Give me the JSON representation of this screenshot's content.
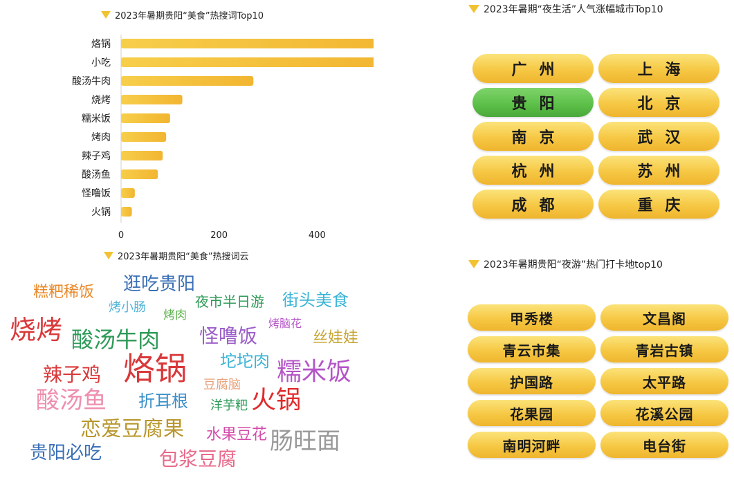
{
  "bar_title": "2023年暑期贵阳“美食”热搜词Top10",
  "cloud_title": "2023年暑期贵阳“美食”热搜词云",
  "cities_title": "2023年暑期“夜生活”人气涨幅城市Top10",
  "spots_title": "2023年暑期贵阳“夜游”热门打卡地top10",
  "chart_data": [
    {
      "type": "bar",
      "orientation": "horizontal",
      "title": "2023年暑期贵阳“美食”热搜词Top10",
      "categories": [
        "烙锅",
        "小吃",
        "酸汤牛肉",
        "烧烤",
        "糯米饭",
        "烤肉",
        "辣子鸡",
        "酸汤鱼",
        "怪噜饭",
        "火锅"
      ],
      "values": [
        570,
        555,
        270,
        125,
        100,
        92,
        85,
        75,
        28,
        22
      ],
      "xlim": [
        0,
        700
      ],
      "xticks": [
        0,
        200,
        400,
        600
      ],
      "grid": false,
      "bar_color": "#f5c23a"
    }
  ],
  "wordcloud": [
    {
      "text": "糕粑稀饭",
      "color": "#e8892a"
    },
    {
      "text": "逛吃贵阳",
      "color": "#3a6fb5"
    },
    {
      "text": "烤小肠",
      "color": "#4fb3d9"
    },
    {
      "text": "夜市半日游",
      "color": "#2e9a58"
    },
    {
      "text": "街头美食",
      "color": "#3bb4d6"
    },
    {
      "text": "烤肉",
      "color": "#5db24e"
    },
    {
      "text": "烤脑花",
      "color": "#b455c7"
    },
    {
      "text": "烧烤",
      "color": "#d9383a"
    },
    {
      "text": "酸汤牛肉",
      "color": "#2e9a58"
    },
    {
      "text": "怪噜饭",
      "color": "#9b5ec8"
    },
    {
      "text": "丝娃娃",
      "color": "#c7a535"
    },
    {
      "text": "坨坨肉",
      "color": "#3bb4d6"
    },
    {
      "text": "辣子鸡",
      "color": "#d9383a"
    },
    {
      "text": "烙锅",
      "color": "#d9383a"
    },
    {
      "text": "糯米饭",
      "color": "#b455c7"
    },
    {
      "text": "豆腐脑",
      "color": "#e8a07a"
    },
    {
      "text": "酸汤鱼",
      "color": "#ee8fae"
    },
    {
      "text": "折耳根",
      "color": "#3a8fc9"
    },
    {
      "text": "洋芋粑",
      "color": "#2e9a58"
    },
    {
      "text": "火锅",
      "color": "#e02a2a"
    },
    {
      "text": "恋爱豆腐果",
      "color": "#b8962b"
    },
    {
      "text": "水果豆花",
      "color": "#d44cab"
    },
    {
      "text": "肠旺面",
      "color": "#999999"
    },
    {
      "text": "贵阳必吃",
      "color": "#3a6fb5"
    },
    {
      "text": "包浆豆腐",
      "color": "#e86a8a"
    }
  ],
  "cities": [
    {
      "name": "广州",
      "highlight": false
    },
    {
      "name": "上海",
      "highlight": false
    },
    {
      "name": "贵阳",
      "highlight": true
    },
    {
      "name": "北京",
      "highlight": false
    },
    {
      "name": "南京",
      "highlight": false
    },
    {
      "name": "武汉",
      "highlight": false
    },
    {
      "name": "杭州",
      "highlight": false
    },
    {
      "name": "苏州",
      "highlight": false
    },
    {
      "name": "成都",
      "highlight": false
    },
    {
      "name": "重庆",
      "highlight": false
    }
  ],
  "spots": [
    "甲秀楼",
    "文昌阁",
    "青云市集",
    "青岩古镇",
    "护国路",
    "太平路",
    "花果园",
    "花溪公园",
    "南明河畔",
    "电台街"
  ]
}
